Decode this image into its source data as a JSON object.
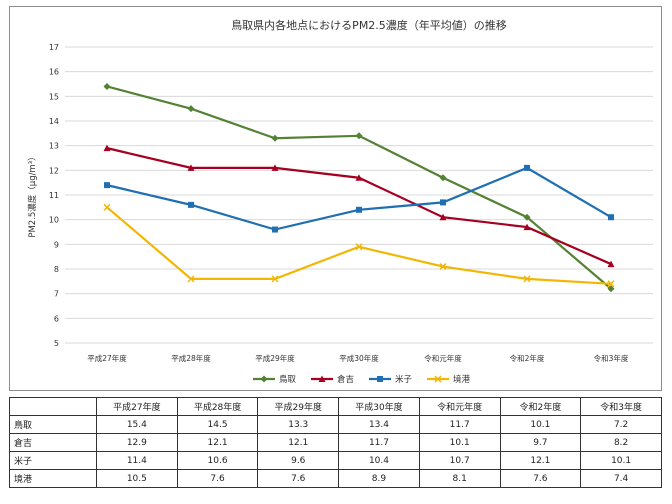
{
  "chart_data": {
    "type": "line",
    "title": "鳥取県内各地点におけるPM2.5濃度（年平均値）の推移",
    "ylabel": "PM2.5濃度（μg/m³）",
    "xlabel": "",
    "categories": [
      "平成27年度",
      "平成28年度",
      "平成29年度",
      "平成30年度",
      "令和元年度",
      "令和2年度",
      "令和3年度"
    ],
    "ylim": [
      5,
      17
    ],
    "yticks": [
      5,
      6,
      7,
      8,
      9,
      10,
      11,
      12,
      13,
      14,
      15,
      16,
      17
    ],
    "grid": true,
    "legend_position": "bottom",
    "series": [
      {
        "name": "鳥取",
        "values": [
          15.4,
          14.5,
          13.3,
          13.4,
          11.7,
          10.1,
          7.2
        ],
        "color": "#548235",
        "marker": "diamond"
      },
      {
        "name": "倉吉",
        "values": [
          12.9,
          12.1,
          12.1,
          11.7,
          10.1,
          9.7,
          8.2
        ],
        "color": "#a50021",
        "marker": "triangle"
      },
      {
        "name": "米子",
        "values": [
          11.4,
          10.6,
          9.6,
          10.4,
          10.7,
          12.1,
          10.1
        ],
        "color": "#1f6fb2",
        "marker": "square"
      },
      {
        "name": "境港",
        "values": [
          10.5,
          7.6,
          7.6,
          8.9,
          8.1,
          7.6,
          7.4
        ],
        "color": "#f2b705",
        "marker": "x"
      }
    ]
  },
  "table": {
    "corner": "",
    "headers": [
      "平成27年度",
      "平成28年度",
      "平成29年度",
      "平成30年度",
      "令和元年度",
      "令和2年度",
      "令和3年度"
    ],
    "rows": [
      {
        "name": "鳥取",
        "values": [
          "15.4",
          "14.5",
          "13.3",
          "13.4",
          "11.7",
          "10.1",
          "7.2"
        ]
      },
      {
        "name": "倉吉",
        "values": [
          "12.9",
          "12.1",
          "12.1",
          "11.7",
          "10.1",
          "9.7",
          "8.2"
        ]
      },
      {
        "name": "米子",
        "values": [
          "11.4",
          "10.6",
          "9.6",
          "10.4",
          "10.7",
          "12.1",
          "10.1"
        ]
      },
      {
        "name": "境港",
        "values": [
          "10.5",
          "7.6",
          "7.6",
          "8.9",
          "8.1",
          "7.6",
          "7.4"
        ]
      }
    ]
  }
}
